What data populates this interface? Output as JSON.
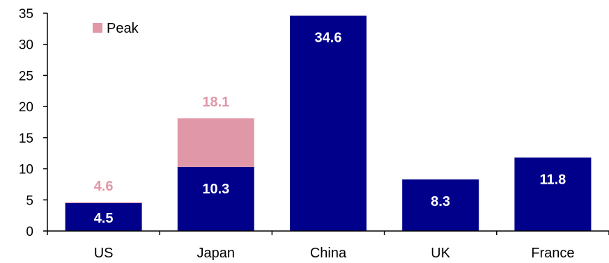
{
  "chart_data": {
    "type": "bar",
    "stacked": true,
    "categories": [
      "US",
      "Japan",
      "China",
      "UK",
      "France"
    ],
    "series": [
      {
        "name": "",
        "color": "#00008b",
        "values": [
          4.5,
          10.3,
          34.6,
          8.3,
          11.8
        ]
      },
      {
        "name": "Peak",
        "color": "#e097a8",
        "values": [
          0.1,
          7.8,
          0,
          0,
          0
        ]
      }
    ],
    "data_labels": {
      "base": [
        "4.5",
        "10.3",
        "34.6",
        "8.3",
        "11.8"
      ],
      "peak": [
        "4.6",
        "18.1",
        "",
        "",
        ""
      ]
    },
    "legend": {
      "entries": [
        "Peak"
      ],
      "placement": "top-left"
    },
    "y_ticks": [
      "0",
      "5",
      "10",
      "15",
      "20",
      "25",
      "30",
      "35"
    ],
    "ylim": [
      0,
      35
    ],
    "grid": false,
    "title": "",
    "xlabel": "",
    "ylabel": ""
  }
}
